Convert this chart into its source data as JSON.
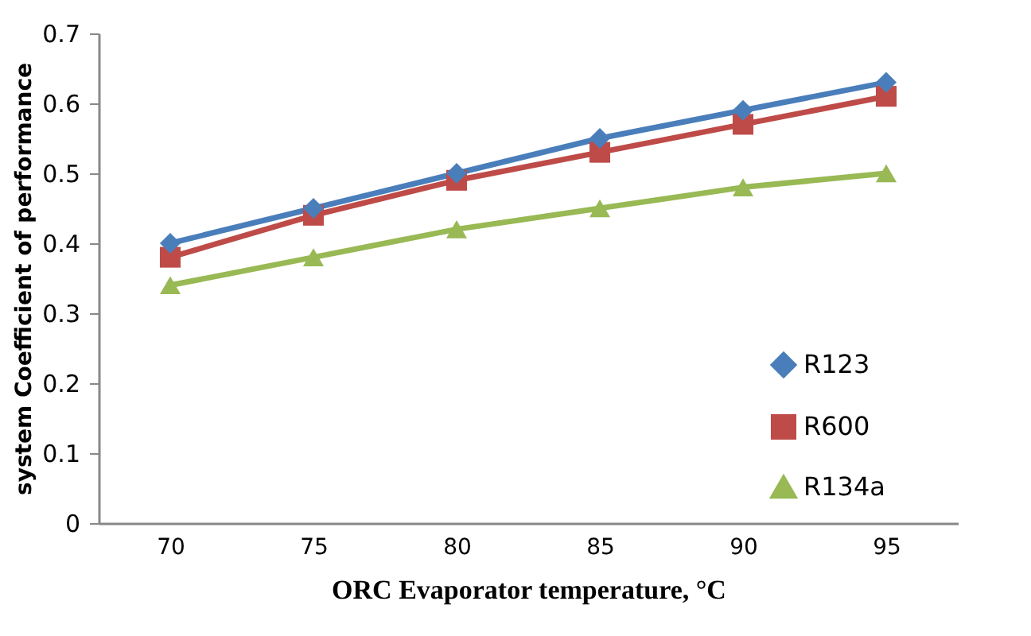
{
  "chart_data": {
    "type": "line",
    "xlabel": "ORC Evaporator temperature, °C",
    "ylabel": "system Coefficient of performance",
    "categories": [
      "70",
      "75",
      "80",
      "85",
      "90",
      "95"
    ],
    "series": [
      {
        "name": "R123",
        "color": "#4a7ebb",
        "marker": "diamond",
        "values": [
          0.4,
          0.45,
          0.5,
          0.55,
          0.59,
          0.63
        ]
      },
      {
        "name": "R600",
        "color": "#be4b48",
        "marker": "square",
        "values": [
          0.38,
          0.44,
          0.49,
          0.53,
          0.57,
          0.61
        ]
      },
      {
        "name": "R134a",
        "color": "#98b954",
        "marker": "triangle",
        "values": [
          0.34,
          0.38,
          0.42,
          0.45,
          0.48,
          0.5
        ]
      }
    ],
    "ylim": [
      0,
      0.7
    ],
    "yticks": [
      0,
      0.1,
      0.2,
      0.3,
      0.4,
      0.5,
      0.6,
      0.7
    ],
    "grid": false,
    "legend": "right",
    "line_style": "solid"
  }
}
